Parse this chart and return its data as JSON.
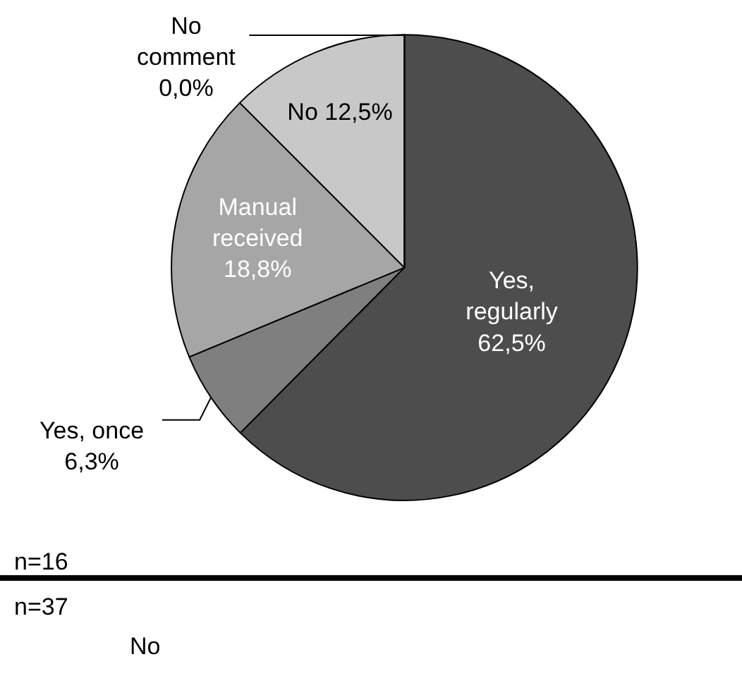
{
  "chart_data": {
    "type": "pie",
    "categories": [
      "Yes, regularly",
      "Yes, once",
      "Manual received",
      "No",
      "No comment"
    ],
    "values": [
      62.5,
      6.3,
      18.8,
      12.5,
      0.0
    ],
    "colors": [
      "#4d4d4d",
      "#7f7f7f",
      "#a6a6a6",
      "#c8c8c8",
      "#e0e0e0"
    ],
    "value_labels": [
      "62,5%",
      "6,3%",
      "18,8%",
      "12,5%",
      "0,0%"
    ],
    "annotations": [
      "n=16",
      "n=37",
      "No"
    ]
  }
}
